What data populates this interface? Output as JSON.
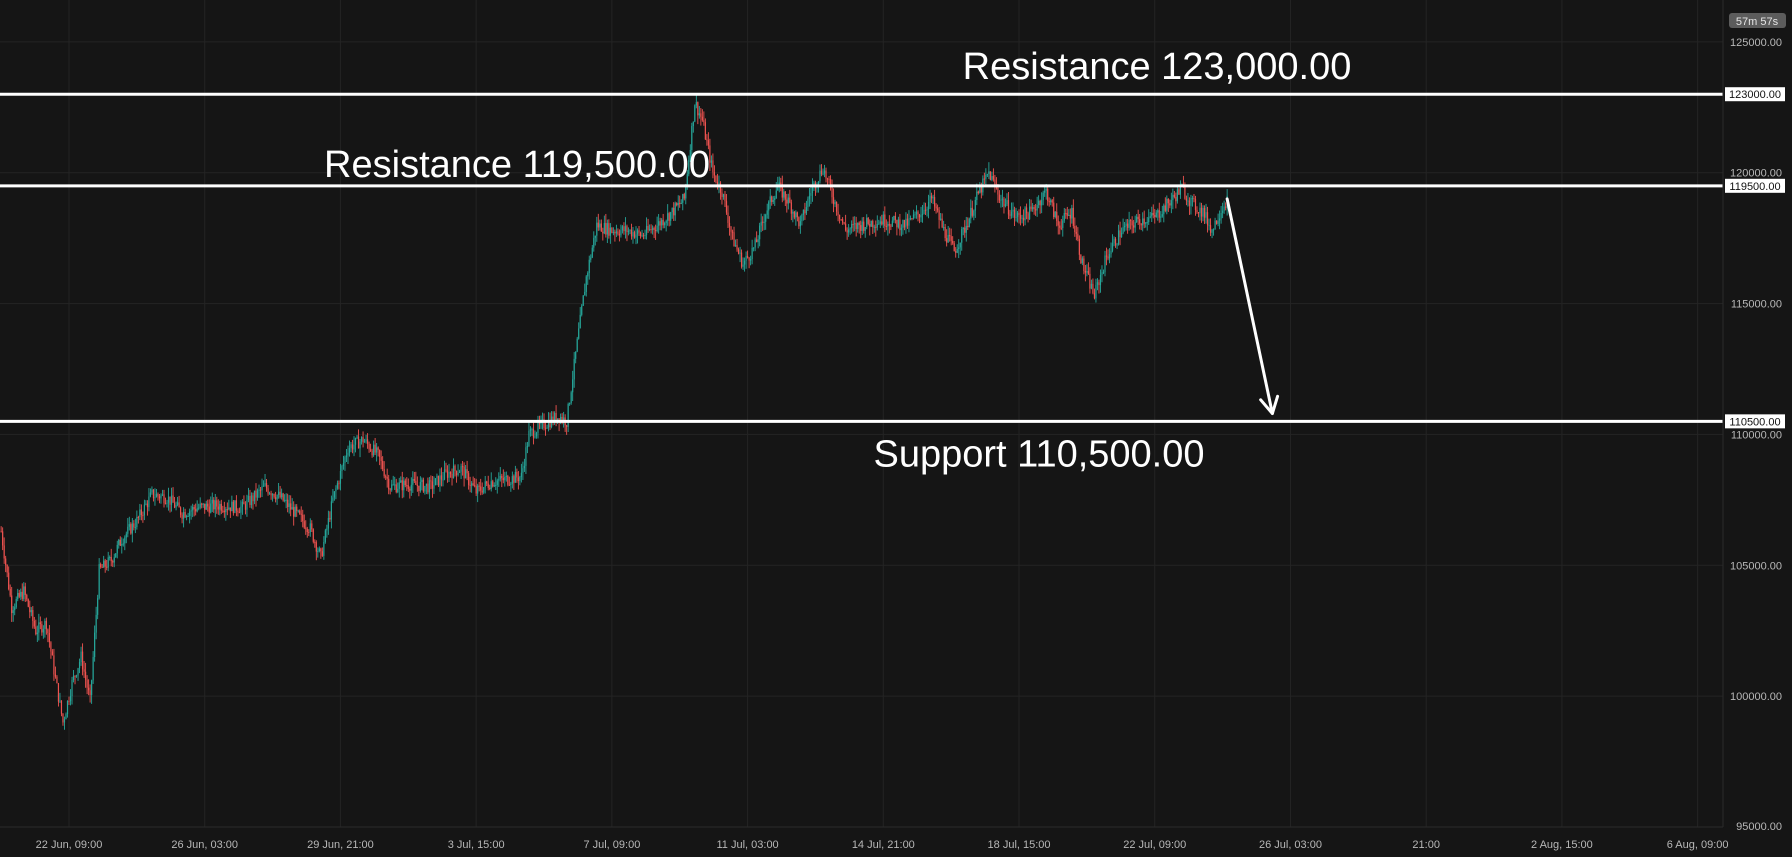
{
  "colors": {
    "background": "#151515",
    "grid": "#242424",
    "up": "#26a69a",
    "down": "#ef5350",
    "level_line": "#ffffff"
  },
  "countdown": "57m 57s",
  "chart_data": {
    "type": "candlestick",
    "title": "",
    "xlabel": "",
    "ylabel": "",
    "ylim": [
      95000,
      126600
    ],
    "grid": true,
    "y_ticks": [
      {
        "value": 125000,
        "label": "125000.00"
      },
      {
        "value": 120000,
        "label": "120000.00"
      },
      {
        "value": 115000,
        "label": "115000.00"
      },
      {
        "value": 110000,
        "label": "110000.00"
      },
      {
        "value": 105000,
        "label": "105000.00"
      },
      {
        "value": 100000,
        "label": "100000.00"
      },
      {
        "value": 95000,
        "label": "95000.00"
      }
    ],
    "x_ticks": [
      {
        "label": "22 Jun, 09:00",
        "t": 0
      },
      {
        "label": "26 Jun, 03:00",
        "t": 90
      },
      {
        "label": "29 Jun, 21:00",
        "t": 180
      },
      {
        "label": "3 Jul, 15:00",
        "t": 270
      },
      {
        "label": "7 Jul, 09:00",
        "t": 360
      },
      {
        "label": "11 Jul, 03:00",
        "t": 450
      },
      {
        "label": "14 Jul, 21:00",
        "t": 540
      },
      {
        "label": "18 Jul, 15:00",
        "t": 630
      },
      {
        "label": "22 Jul, 09:00",
        "t": 720
      },
      {
        "label": "26 Jul, 03:00",
        "t": 810
      },
      {
        "label": "21:00",
        "t": 900
      },
      {
        "label": "2 Aug, 15:00",
        "t": 990
      },
      {
        "label": "6 Aug, 09:00",
        "t": 1080
      }
    ],
    "price_path": [
      {
        "t": -45,
        "price": 106300
      },
      {
        "t": -38,
        "price": 103400
      },
      {
        "t": -30,
        "price": 104000
      },
      {
        "t": -22,
        "price": 102500
      },
      {
        "t": -15,
        "price": 102800
      },
      {
        "t": -10,
        "price": 101000
      },
      {
        "t": -4,
        "price": 99000
      },
      {
        "t": 2,
        "price": 100500
      },
      {
        "t": 8,
        "price": 101500
      },
      {
        "t": 14,
        "price": 99800
      },
      {
        "t": 20,
        "price": 104800
      },
      {
        "t": 28,
        "price": 105200
      },
      {
        "t": 35,
        "price": 106000
      },
      {
        "t": 45,
        "price": 106700
      },
      {
        "t": 55,
        "price": 107700
      },
      {
        "t": 65,
        "price": 107600
      },
      {
        "t": 75,
        "price": 107000
      },
      {
        "t": 85,
        "price": 107200
      },
      {
        "t": 100,
        "price": 107300
      },
      {
        "t": 115,
        "price": 107200
      },
      {
        "t": 130,
        "price": 108000
      },
      {
        "t": 140,
        "price": 107600
      },
      {
        "t": 150,
        "price": 107000
      },
      {
        "t": 160,
        "price": 106400
      },
      {
        "t": 167,
        "price": 105300
      },
      {
        "t": 175,
        "price": 107500
      },
      {
        "t": 185,
        "price": 109500
      },
      {
        "t": 195,
        "price": 109800
      },
      {
        "t": 205,
        "price": 109200
      },
      {
        "t": 213,
        "price": 108000
      },
      {
        "t": 225,
        "price": 108100
      },
      {
        "t": 240,
        "price": 108000
      },
      {
        "t": 250,
        "price": 108500
      },
      {
        "t": 260,
        "price": 108700
      },
      {
        "t": 270,
        "price": 107800
      },
      {
        "t": 280,
        "price": 108200
      },
      {
        "t": 292,
        "price": 108300
      },
      {
        "t": 300,
        "price": 108400
      },
      {
        "t": 305,
        "price": 110000
      },
      {
        "t": 315,
        "price": 110400
      },
      {
        "t": 325,
        "price": 110700
      },
      {
        "t": 330,
        "price": 110500
      },
      {
        "t": 337,
        "price": 113500
      },
      {
        "t": 343,
        "price": 116000
      },
      {
        "t": 350,
        "price": 118000
      },
      {
        "t": 360,
        "price": 117800
      },
      {
        "t": 370,
        "price": 117800
      },
      {
        "t": 380,
        "price": 117600
      },
      {
        "t": 390,
        "price": 118000
      },
      {
        "t": 400,
        "price": 118500
      },
      {
        "t": 408,
        "price": 119000
      },
      {
        "t": 415,
        "price": 122700
      },
      {
        "t": 420,
        "price": 122000
      },
      {
        "t": 427,
        "price": 120000
      },
      {
        "t": 433,
        "price": 119300
      },
      {
        "t": 440,
        "price": 117500
      },
      {
        "t": 447,
        "price": 116500
      },
      {
        "t": 455,
        "price": 117200
      },
      {
        "t": 462,
        "price": 118500
      },
      {
        "t": 470,
        "price": 119500
      },
      {
        "t": 478,
        "price": 118800
      },
      {
        "t": 485,
        "price": 118000
      },
      {
        "t": 492,
        "price": 119300
      },
      {
        "t": 500,
        "price": 120200
      },
      {
        "t": 507,
        "price": 119000
      },
      {
        "t": 515,
        "price": 117800
      },
      {
        "t": 525,
        "price": 118000
      },
      {
        "t": 540,
        "price": 118200
      },
      {
        "t": 555,
        "price": 118000
      },
      {
        "t": 565,
        "price": 118500
      },
      {
        "t": 572,
        "price": 119000
      },
      {
        "t": 580,
        "price": 117800
      },
      {
        "t": 587,
        "price": 117000
      },
      {
        "t": 595,
        "price": 118000
      },
      {
        "t": 603,
        "price": 119200
      },
      {
        "t": 610,
        "price": 120000
      },
      {
        "t": 618,
        "price": 119000
      },
      {
        "t": 628,
        "price": 118300
      },
      {
        "t": 638,
        "price": 118500
      },
      {
        "t": 648,
        "price": 119300
      },
      {
        "t": 656,
        "price": 118000
      },
      {
        "t": 665,
        "price": 118500
      },
      {
        "t": 672,
        "price": 116500
      },
      {
        "t": 680,
        "price": 115300
      },
      {
        "t": 688,
        "price": 116800
      },
      {
        "t": 698,
        "price": 117800
      },
      {
        "t": 710,
        "price": 118200
      },
      {
        "t": 720,
        "price": 118300
      },
      {
        "t": 732,
        "price": 119000
      },
      {
        "t": 738,
        "price": 119400
      },
      {
        "t": 745,
        "price": 118800
      },
      {
        "t": 752,
        "price": 118500
      },
      {
        "t": 758,
        "price": 117800
      },
      {
        "t": 763,
        "price": 118500
      },
      {
        "t": 768,
        "price": 119000
      }
    ],
    "levels": [
      {
        "name": "Resistance",
        "value": 123000,
        "axis_label": "123000.00",
        "annotation": "Resistance 123,000.00"
      },
      {
        "name": "Resistance",
        "value": 119500,
        "axis_label": "119500.00",
        "annotation": "Resistance 119,500.00"
      },
      {
        "name": "Support",
        "value": 110500,
        "axis_label": "110500.00",
        "annotation": "Support 110,500.00"
      }
    ],
    "projection_arrow": {
      "from": {
        "t": 768,
        "price": 119000
      },
      "to": {
        "t": 798,
        "price": 110800
      },
      "direction": "down"
    }
  }
}
